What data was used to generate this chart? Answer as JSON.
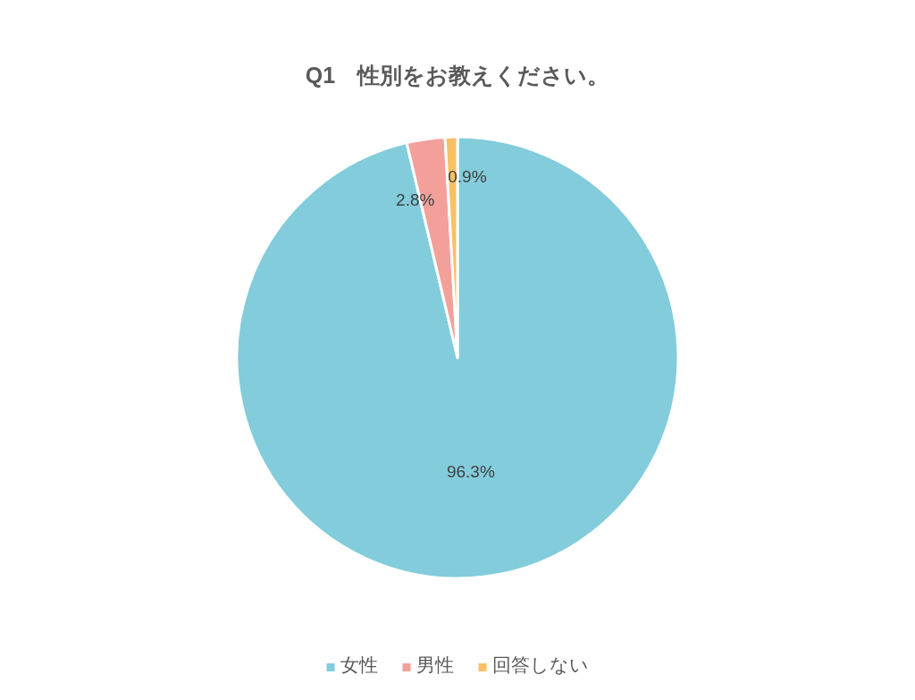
{
  "chart_data": {
    "type": "pie",
    "title": "Q1　性別をお教えください。",
    "categories": [
      "女性",
      "男性",
      "回答しない"
    ],
    "values": [
      96.3,
      2.8,
      0.9
    ],
    "colors": [
      "#82ccdb",
      "#f3a09b",
      "#f9c064"
    ],
    "value_labels": [
      "96.3%",
      "2.8%",
      "0.9%"
    ],
    "legend": "bottom"
  }
}
